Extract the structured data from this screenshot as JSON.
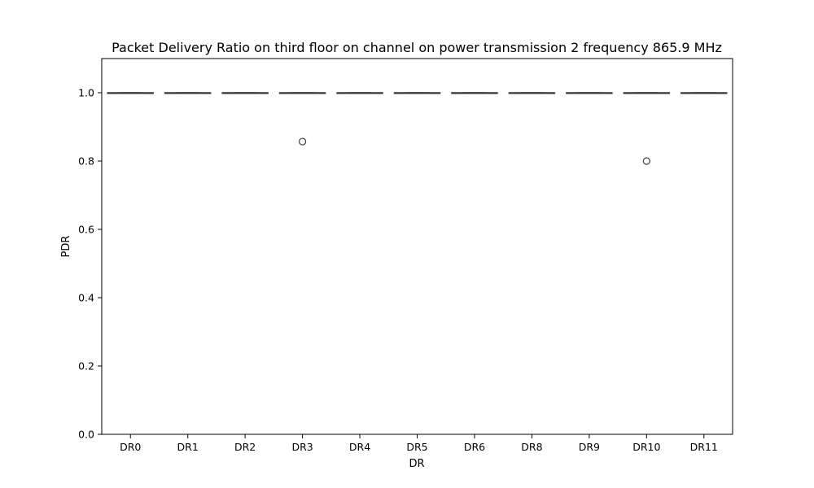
{
  "chart_data": {
    "type": "box",
    "title": "Packet Delivery Ratio on third floor on channel on power transmission 2 frequency 865.9 MHz",
    "xlabel": "DR",
    "ylabel": "PDR",
    "ylim": [
      0.0,
      1.1
    ],
    "yticks": [
      "0.0",
      "0.2",
      "0.4",
      "0.6",
      "0.8",
      "1.0"
    ],
    "grid": false,
    "categories": [
      "DR0",
      "DR1",
      "DR2",
      "DR3",
      "DR4",
      "DR5",
      "DR6",
      "DR8",
      "DR9",
      "DR10",
      "DR11"
    ],
    "boxes": [
      {
        "category": "DR0",
        "q1": 1.0,
        "median": 1.0,
        "q3": 1.0,
        "whisker_low": 1.0,
        "whisker_high": 1.0,
        "outliers": []
      },
      {
        "category": "DR1",
        "q1": 1.0,
        "median": 1.0,
        "q3": 1.0,
        "whisker_low": 1.0,
        "whisker_high": 1.0,
        "outliers": []
      },
      {
        "category": "DR2",
        "q1": 1.0,
        "median": 1.0,
        "q3": 1.0,
        "whisker_low": 1.0,
        "whisker_high": 1.0,
        "outliers": []
      },
      {
        "category": "DR3",
        "q1": 1.0,
        "median": 1.0,
        "q3": 1.0,
        "whisker_low": 1.0,
        "whisker_high": 1.0,
        "outliers": [
          0.857
        ]
      },
      {
        "category": "DR4",
        "q1": 1.0,
        "median": 1.0,
        "q3": 1.0,
        "whisker_low": 1.0,
        "whisker_high": 1.0,
        "outliers": []
      },
      {
        "category": "DR5",
        "q1": 1.0,
        "median": 1.0,
        "q3": 1.0,
        "whisker_low": 1.0,
        "whisker_high": 1.0,
        "outliers": []
      },
      {
        "category": "DR6",
        "q1": 1.0,
        "median": 1.0,
        "q3": 1.0,
        "whisker_low": 1.0,
        "whisker_high": 1.0,
        "outliers": []
      },
      {
        "category": "DR8",
        "q1": 1.0,
        "median": 1.0,
        "q3": 1.0,
        "whisker_low": 1.0,
        "whisker_high": 1.0,
        "outliers": []
      },
      {
        "category": "DR9",
        "q1": 1.0,
        "median": 1.0,
        "q3": 1.0,
        "whisker_low": 1.0,
        "whisker_high": 1.0,
        "outliers": []
      },
      {
        "category": "DR10",
        "q1": 1.0,
        "median": 1.0,
        "q3": 1.0,
        "whisker_low": 1.0,
        "whisker_high": 1.0,
        "outliers": [
          0.8
        ]
      },
      {
        "category": "DR11",
        "q1": 1.0,
        "median": 1.0,
        "q3": 1.0,
        "whisker_low": 1.0,
        "whisker_high": 1.0,
        "outliers": []
      }
    ],
    "colors": {
      "box_edge": "#3f3f3f",
      "axis": "#000000"
    }
  }
}
